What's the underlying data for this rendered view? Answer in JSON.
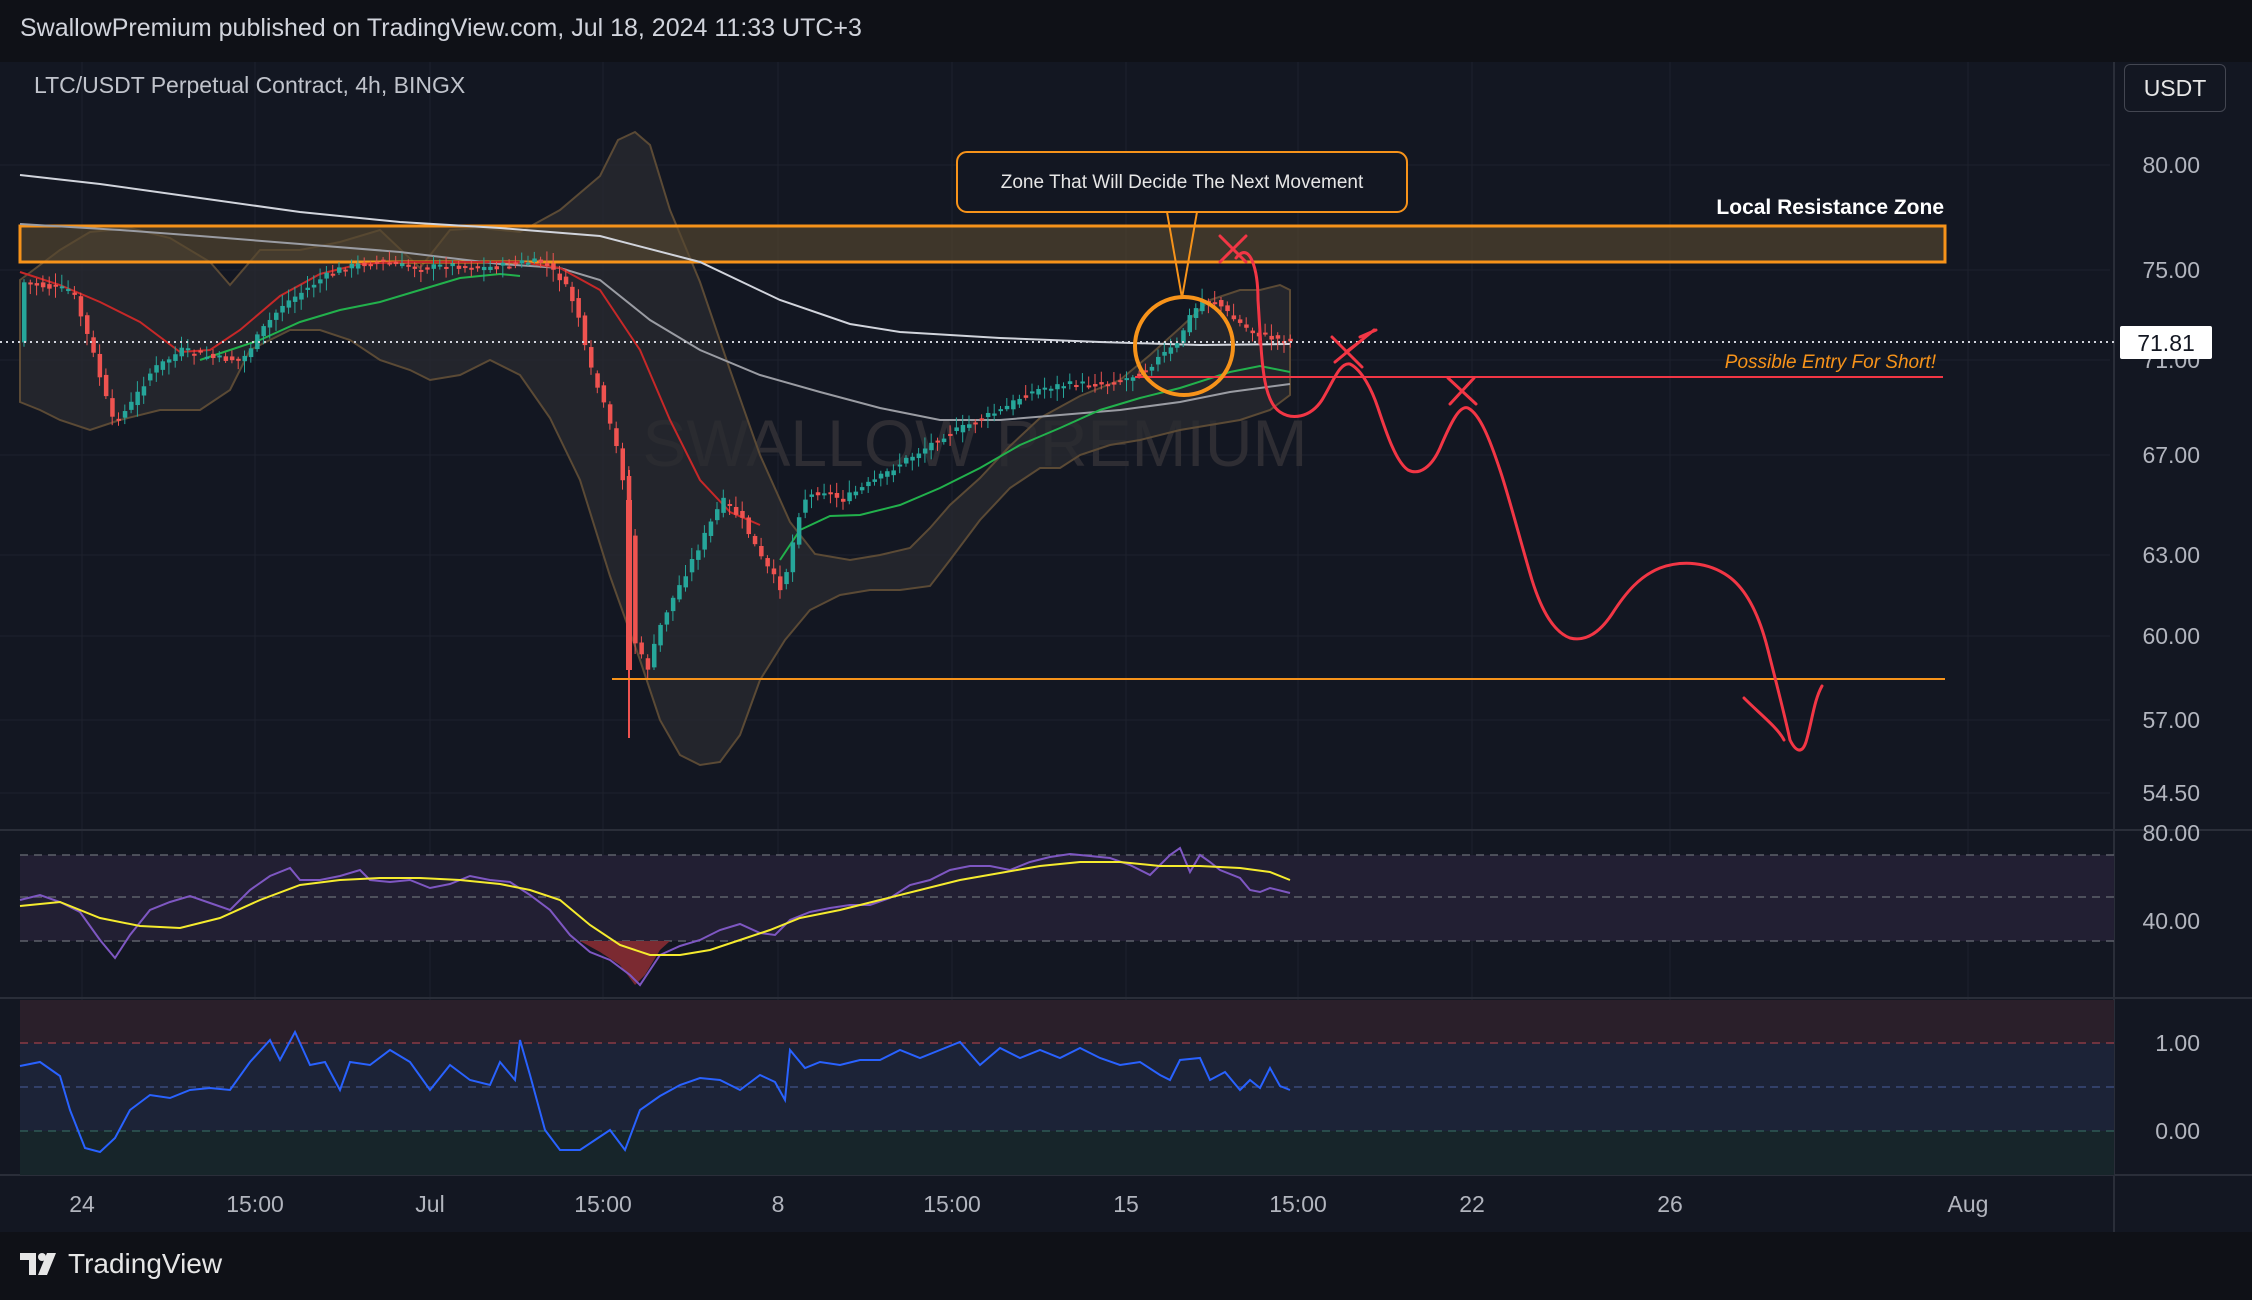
{
  "header": {
    "published_text": "SwallowPremium published on TradingView.com, Jul 18, 2024 11:33 UTC+3"
  },
  "chart": {
    "symbol_title": "LTC/USDT Perpetual Contract, 4h, BINGX",
    "currency_button": "USDT",
    "watermark": "SWALLOW PREMIUM",
    "current_price": "71.81",
    "price_ticks": [
      "80.00",
      "75.00",
      "71.00",
      "67.00",
      "63.00",
      "60.00",
      "57.00",
      "54.50"
    ],
    "rsi_ticks": [
      "80.00",
      "40.00"
    ],
    "osc_ticks": [
      "1.00",
      "0.00"
    ],
    "time_ticks": [
      "24",
      "15:00",
      "Jul",
      "15:00",
      "8",
      "15:00",
      "15",
      "15:00",
      "22",
      "26",
      "Aug"
    ],
    "annotations": {
      "zone_callout": "Zone That Will Decide The Next Movement",
      "resistance_label": "Local Resistance Zone",
      "entry_label": "Possible Entry For Short!"
    },
    "colors": {
      "background": "#131722",
      "up_candle": "#26a69a",
      "down_candle": "#ef5350",
      "resistance_zone": "#f7931a",
      "forecast_path": "#f23645",
      "ema_green": "#22b14c",
      "rsi_line": "#7e57c2",
      "rsi_ma": "#f5eb2e",
      "osc_line": "#2962ff"
    }
  },
  "footer": {
    "brand": "TradingView"
  }
}
